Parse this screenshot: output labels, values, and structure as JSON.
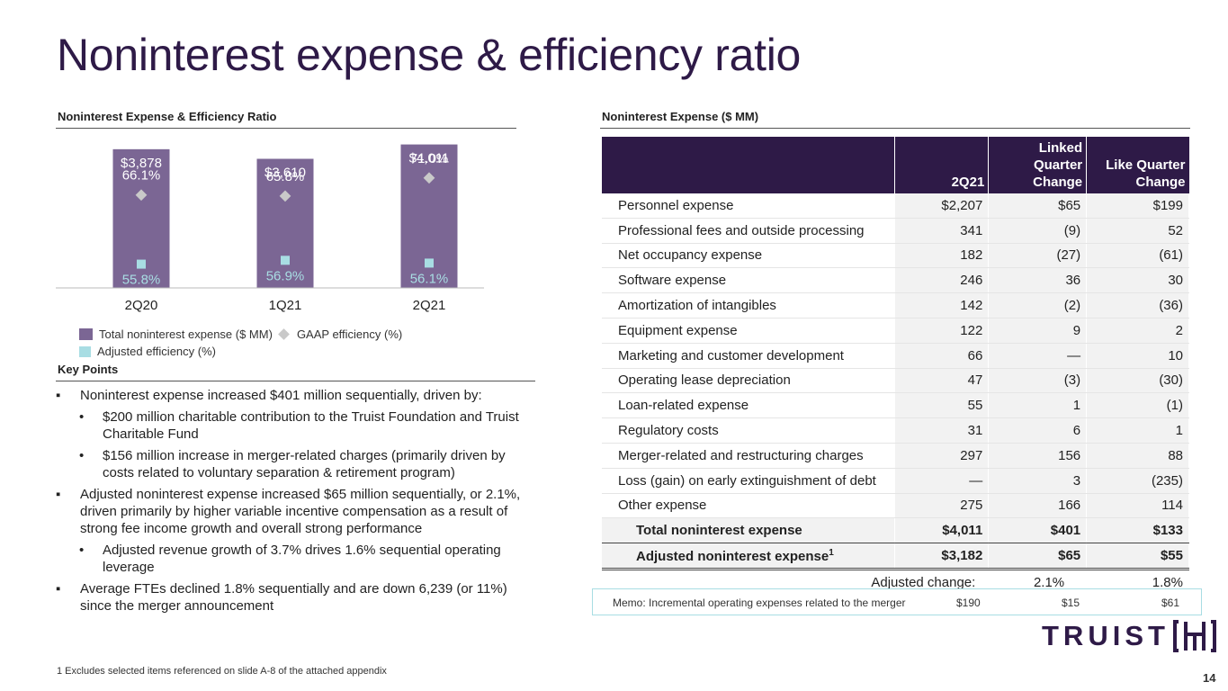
{
  "title": "Noninterest expense & efficiency ratio",
  "chart_section_title": "Noninterest Expense & Efficiency Ratio",
  "table_section_title": "Noninterest Expense ($ MM)",
  "key_points_title": "Key Points",
  "chart_data": {
    "type": "bar",
    "categories": [
      "2Q20",
      "1Q21",
      "2Q21"
    ],
    "series": [
      {
        "name": "Total noninterest expense ($ MM)",
        "kind": "bar",
        "values": [
          3878,
          3610,
          4011
        ],
        "labels": [
          "$3,878",
          "$3,610",
          "$4,011"
        ],
        "color": "#7b6694"
      },
      {
        "name": "GAAP efficiency (%)",
        "kind": "marker-diamond",
        "values": [
          66.1,
          65.8,
          71.0
        ],
        "labels": [
          "66.1%",
          "65.8%",
          "71.0%"
        ],
        "color": "#c9c9c9"
      },
      {
        "name": "Adjusted efficiency (%)",
        "kind": "marker-square",
        "values": [
          55.8,
          56.9,
          56.1
        ],
        "labels": [
          "55.8%",
          "56.9%",
          "56.1%"
        ],
        "color": "#a8dde3"
      }
    ],
    "bar_ylim": [
      0,
      4500
    ],
    "pct_ylim": [
      35,
      80
    ]
  },
  "legend": {
    "bar": "Total noninterest expense ($ MM)",
    "gaap": "GAAP efficiency (%)",
    "adjusted": "Adjusted efficiency (%)"
  },
  "key_points": [
    {
      "level": 1,
      "bullet": "▪",
      "text": "Noninterest expense increased $401 million sequentially, driven by:"
    },
    {
      "level": 2,
      "bullet": "•",
      "text": "$200 million charitable contribution to the Truist Foundation and Truist Charitable Fund"
    },
    {
      "level": 2,
      "bullet": "•",
      "text": "$156 million increase in merger-related charges (primarily driven by costs related to voluntary separation & retirement program)"
    },
    {
      "level": 1,
      "bullet": "▪",
      "text": "Adjusted noninterest expense increased $65 million sequentially, or 2.1%, driven primarily by higher variable incentive compensation as a result of strong fee income growth and overall strong performance"
    },
    {
      "level": 2,
      "bullet": "•",
      "text": "Adjusted revenue growth of 3.7% drives 1.6% sequential operating leverage"
    },
    {
      "level": 1,
      "bullet": "▪",
      "text": "Average FTEs declined 1.8% sequentially and are down 6,239 (or 11%) since the merger announcement"
    }
  ],
  "table": {
    "headers": [
      "",
      "2Q21",
      "Linked Quarter Change",
      "Like Quarter Change"
    ],
    "rows": [
      [
        "Personnel expense",
        "$2,207",
        "$65",
        "$199"
      ],
      [
        "Professional fees and outside processing",
        "341",
        "(9)",
        "52"
      ],
      [
        "Net occupancy expense",
        "182",
        "(27)",
        "(61)"
      ],
      [
        "Software expense",
        "246",
        "36",
        "30"
      ],
      [
        "Amortization of intangibles",
        "142",
        "(2)",
        "(36)"
      ],
      [
        "Equipment expense",
        "122",
        "9",
        "2"
      ],
      [
        "Marketing and customer development",
        "66",
        "—",
        "10"
      ],
      [
        "Operating lease depreciation",
        "47",
        "(3)",
        "(30)"
      ],
      [
        "Loan-related expense",
        "55",
        "1",
        "(1)"
      ],
      [
        "Regulatory costs",
        "31",
        "6",
        "1"
      ],
      [
        "Merger-related and restructuring charges",
        "297",
        "156",
        "88"
      ],
      [
        "Loss (gain) on early extinguishment of debt",
        "—",
        "3",
        "(235)"
      ],
      [
        "Other expense",
        "275",
        "166",
        "114"
      ]
    ],
    "total": [
      "Total noninterest expense",
      "$4,011",
      "$401",
      "$133"
    ],
    "adjusted": [
      "Adjusted noninterest expense",
      "$3,182",
      "$65",
      "$55"
    ],
    "adjusted_sup": "1",
    "adjusted_change": [
      "Adjusted change:",
      "2.1%",
      "1.8%"
    ]
  },
  "memo": {
    "label": "Memo:  Incremental operating expenses related to the merger",
    "values": [
      "$190",
      "$15",
      "$61"
    ]
  },
  "footnote": "1  Excludes selected items referenced on slide A-8 of the attached appendix",
  "logo_text": "TRUIST",
  "page_number": "14",
  "colors": {
    "brand": "#2e1a47",
    "bar": "#7b6694",
    "adjusted": "#a8dde3",
    "gaap": "#c9c9c9"
  }
}
